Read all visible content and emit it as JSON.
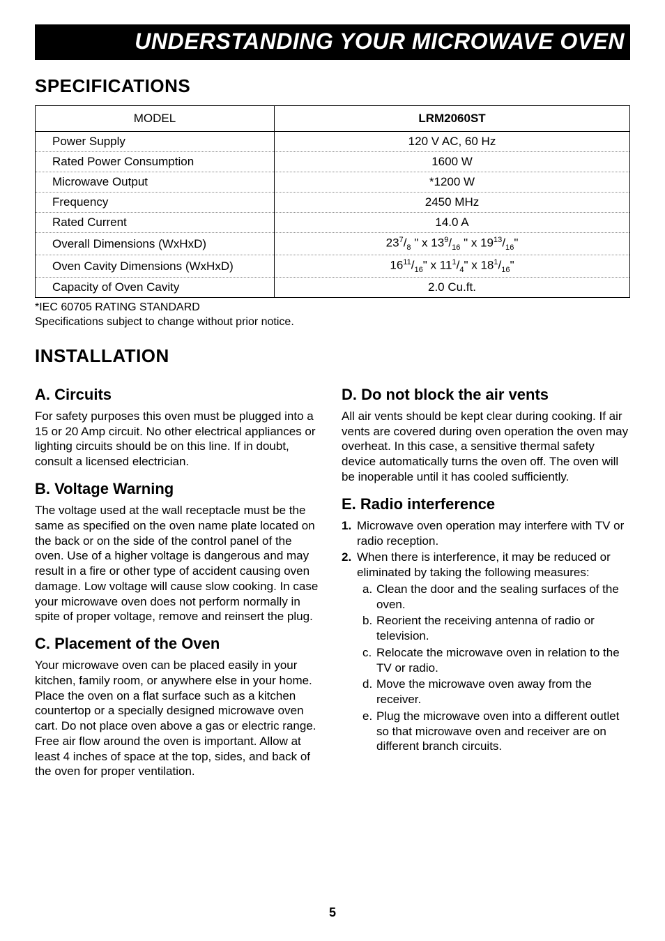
{
  "title": "UNDERSTANDING YOUR MICROWAVE OVEN",
  "specs": {
    "heading": "SPECIFICATIONS",
    "model_label": "MODEL",
    "model_value": "LRM2060ST",
    "rows": [
      {
        "label": "Power Supply",
        "value": "120 V AC, 60 Hz"
      },
      {
        "label": "Rated Power Consumption",
        "value": "1600 W"
      },
      {
        "label": "Microwave Output",
        "value": "*1200 W"
      },
      {
        "label": "Frequency",
        "value": "2450 MHz"
      },
      {
        "label": "Rated Current",
        "value": "14.0  A"
      },
      {
        "label": "Overall Dimensions (WxHxD)",
        "value_html": "23<sup>7</sup>/<sub>8</sub> \" x 13<sup>9</sup>/<sub>16</sub> \" x 19<sup>13</sup>/<sub>16</sub>\""
      },
      {
        "label": "Oven Cavity Dimensions (WxHxD)",
        "value_html": "16<sup>11</sup>/<sub>16</sub>\"  x 11<sup>1</sup>/<sub>4</sub>\" x 18<sup>1</sup>/<sub>16</sub>\""
      },
      {
        "label": "Capacity of Oven Cavity",
        "value": "2.0 Cu.ft."
      }
    ],
    "footnote1": "*IEC 60705 RATING STANDARD",
    "footnote2": " Specifications subject to change without prior notice."
  },
  "installation": {
    "heading": "INSTALLATION",
    "a": {
      "title": "A. Circuits",
      "body": "For safety purposes this oven must be plugged into a 15 or 20 Amp circuit. No other electrical appliances or lighting circuits should be on this line. If in doubt, consult a licensed electrician."
    },
    "b": {
      "title": "B. Voltage Warning",
      "body": "The voltage used at the wall receptacle must be the same as specified on the oven name plate located on the back or on the side of the control panel of the oven. Use of a higher voltage is dangerous and may result in a fire or other type of accident causing oven damage. Low voltage will cause slow cooking. In case your microwave oven does not perform normally in spite of proper voltage, remove and reinsert the plug."
    },
    "c": {
      "title": "C. Placement of the Oven",
      "body": "Your microwave oven can be placed easily in your kitchen, family room, or anywhere else in your home. Place the oven on a flat surface such as a kitchen countertop or a specially designed microwave oven cart. Do not place oven above a gas or electric range. Free air flow around the oven is important. Allow at least 4 inches of space at the top, sides, and back of the oven for proper ventilation."
    },
    "d": {
      "title": "D. Do not block the air vents",
      "body": "All air vents should be kept clear during cooking. If air vents are covered during oven operation the oven may overheat. In this case, a sensitive thermal safety device automatically turns the oven off. The oven will be inoperable until it has cooled sufficiently."
    },
    "e": {
      "title": "E. Radio interference",
      "item1": "Microwave oven operation may interfere with TV or radio reception.",
      "item2": "When there is interference, it may be reduced or eliminated by taking the following measures:",
      "sub": {
        "a": "Clean the door and the sealing surfaces of the oven.",
        "b": "Reorient the receiving antenna of radio or television.",
        "c": "Relocate the microwave oven in relation to the TV or radio.",
        "d": "Move the microwave oven away from the receiver.",
        "e": "Plug the microwave oven into a different outlet so that microwave oven and receiver are on different branch circuits."
      }
    }
  },
  "page_number": "5"
}
